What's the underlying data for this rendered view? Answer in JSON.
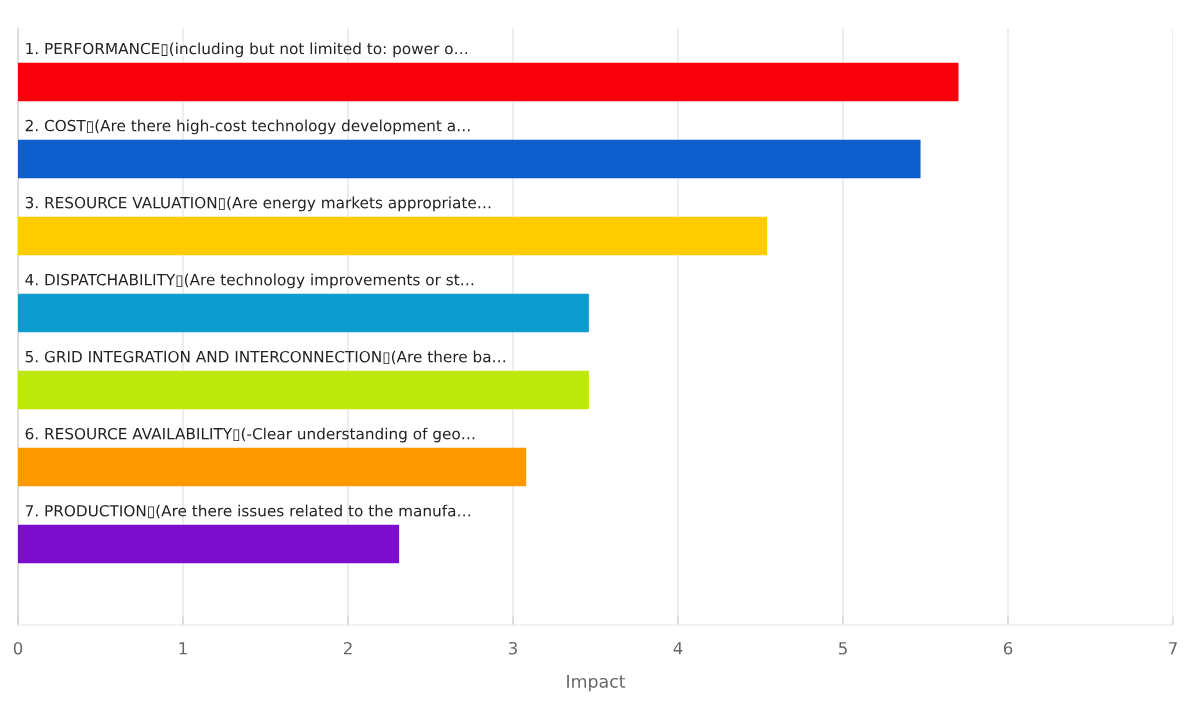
{
  "chart_data": {
    "type": "bar",
    "orientation": "horizontal",
    "xlabel": "Impact",
    "categories": [
      "1. PERFORMANCE▯(including but not limited to: power o…",
      "2. COST▯(Are there high-cost technology development a…",
      "3. RESOURCE VALUATION▯(Are energy markets appropriate…",
      "4. DISPATCHABILITY▯(Are technology improvements or st…",
      "5. GRID INTEGRATION AND INTERCONNECTION▯(Are there ba…",
      "6. RESOURCE AVAILABILITY▯(-Clear understanding of geo…",
      "7. PRODUCTION▯(Are there issues related to the manufa…"
    ],
    "values": [
      5.7,
      5.47,
      4.54,
      3.46,
      3.46,
      3.08,
      2.31
    ],
    "colors": [
      "#f8000c",
      "#0e5ecd",
      "#ffcc00",
      "#0d9ccf",
      "#bde80a",
      "#ff9900",
      "#7c0dcd"
    ],
    "xlim": [
      0,
      7
    ],
    "xticks": [
      0,
      1,
      2,
      3,
      4,
      5,
      6,
      7
    ],
    "grid": "x"
  }
}
